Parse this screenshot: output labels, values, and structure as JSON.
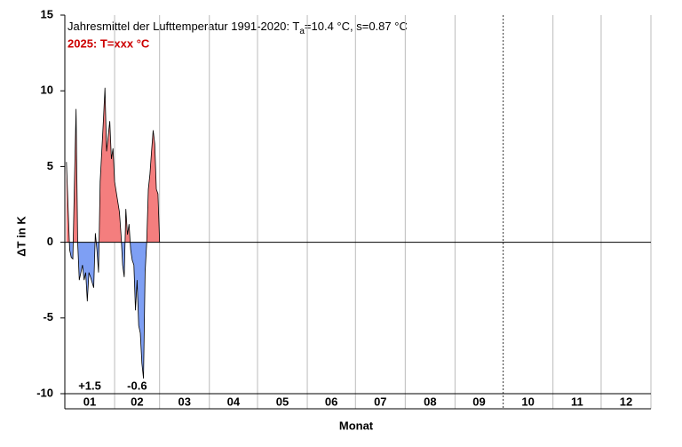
{
  "chart_data": {
    "type": "area",
    "title": {
      "prefix": "Jahresmittel der Lufttemperatur 1991-2020: T",
      "subscript": "a",
      "suffix": "=10.4 °C, s=0.87 °C"
    },
    "subtitle": "2025: T=xxx °C",
    "subtitle_color": "#cc0000",
    "ylabel": "ΔT in K",
    "xlabel": "Monat",
    "ylim": [
      -10,
      15
    ],
    "yticks": [
      -10,
      -5,
      0,
      5,
      10,
      15
    ],
    "xlim": [
      0,
      365
    ],
    "month_bounds": [
      0,
      31,
      59,
      90,
      120,
      151,
      181,
      212,
      243,
      273,
      304,
      334,
      365
    ],
    "months": [
      "01",
      "02",
      "03",
      "04",
      "05",
      "06",
      "07",
      "08",
      "09",
      "10",
      "11",
      "12"
    ],
    "positive_color": "#f47e7e",
    "negative_color": "#7e9ff4",
    "x": [
      1,
      3,
      4,
      5,
      6,
      7,
      8,
      9,
      10,
      11,
      12,
      13,
      14,
      15,
      16,
      18,
      19,
      20,
      21,
      22,
      23,
      24,
      25,
      26,
      28,
      29,
      30,
      31,
      34,
      35,
      36,
      37,
      38,
      39,
      40,
      41,
      42,
      43,
      44,
      45,
      46,
      47,
      48,
      49,
      50,
      51,
      52,
      53,
      54,
      55,
      56,
      57,
      58,
      59
    ],
    "values": [
      5.3,
      -0.5,
      -1,
      -1.1,
      4,
      8.8,
      0,
      -2.5,
      -2,
      -1.5,
      -2.5,
      -2,
      -3.9,
      -2,
      -2.3,
      -3,
      0.6,
      -0.5,
      -2,
      4,
      6,
      8,
      10.2,
      6,
      8,
      5.5,
      6.2,
      4,
      2,
      0.5,
      -1.5,
      -2.3,
      2.2,
      0.5,
      1.2,
      -0.5,
      -1.2,
      -1.5,
      -4.5,
      -2.5,
      -5.5,
      -6,
      -8,
      -9,
      -2,
      0,
      3.5,
      4.5,
      6,
      7.4,
      6.5,
      3.5,
      3.2,
      0
    ],
    "monthly_means": {
      "values": [
        1.5,
        -0.6
      ],
      "value_labels": [
        "+1.5",
        "-0.6"
      ]
    }
  }
}
